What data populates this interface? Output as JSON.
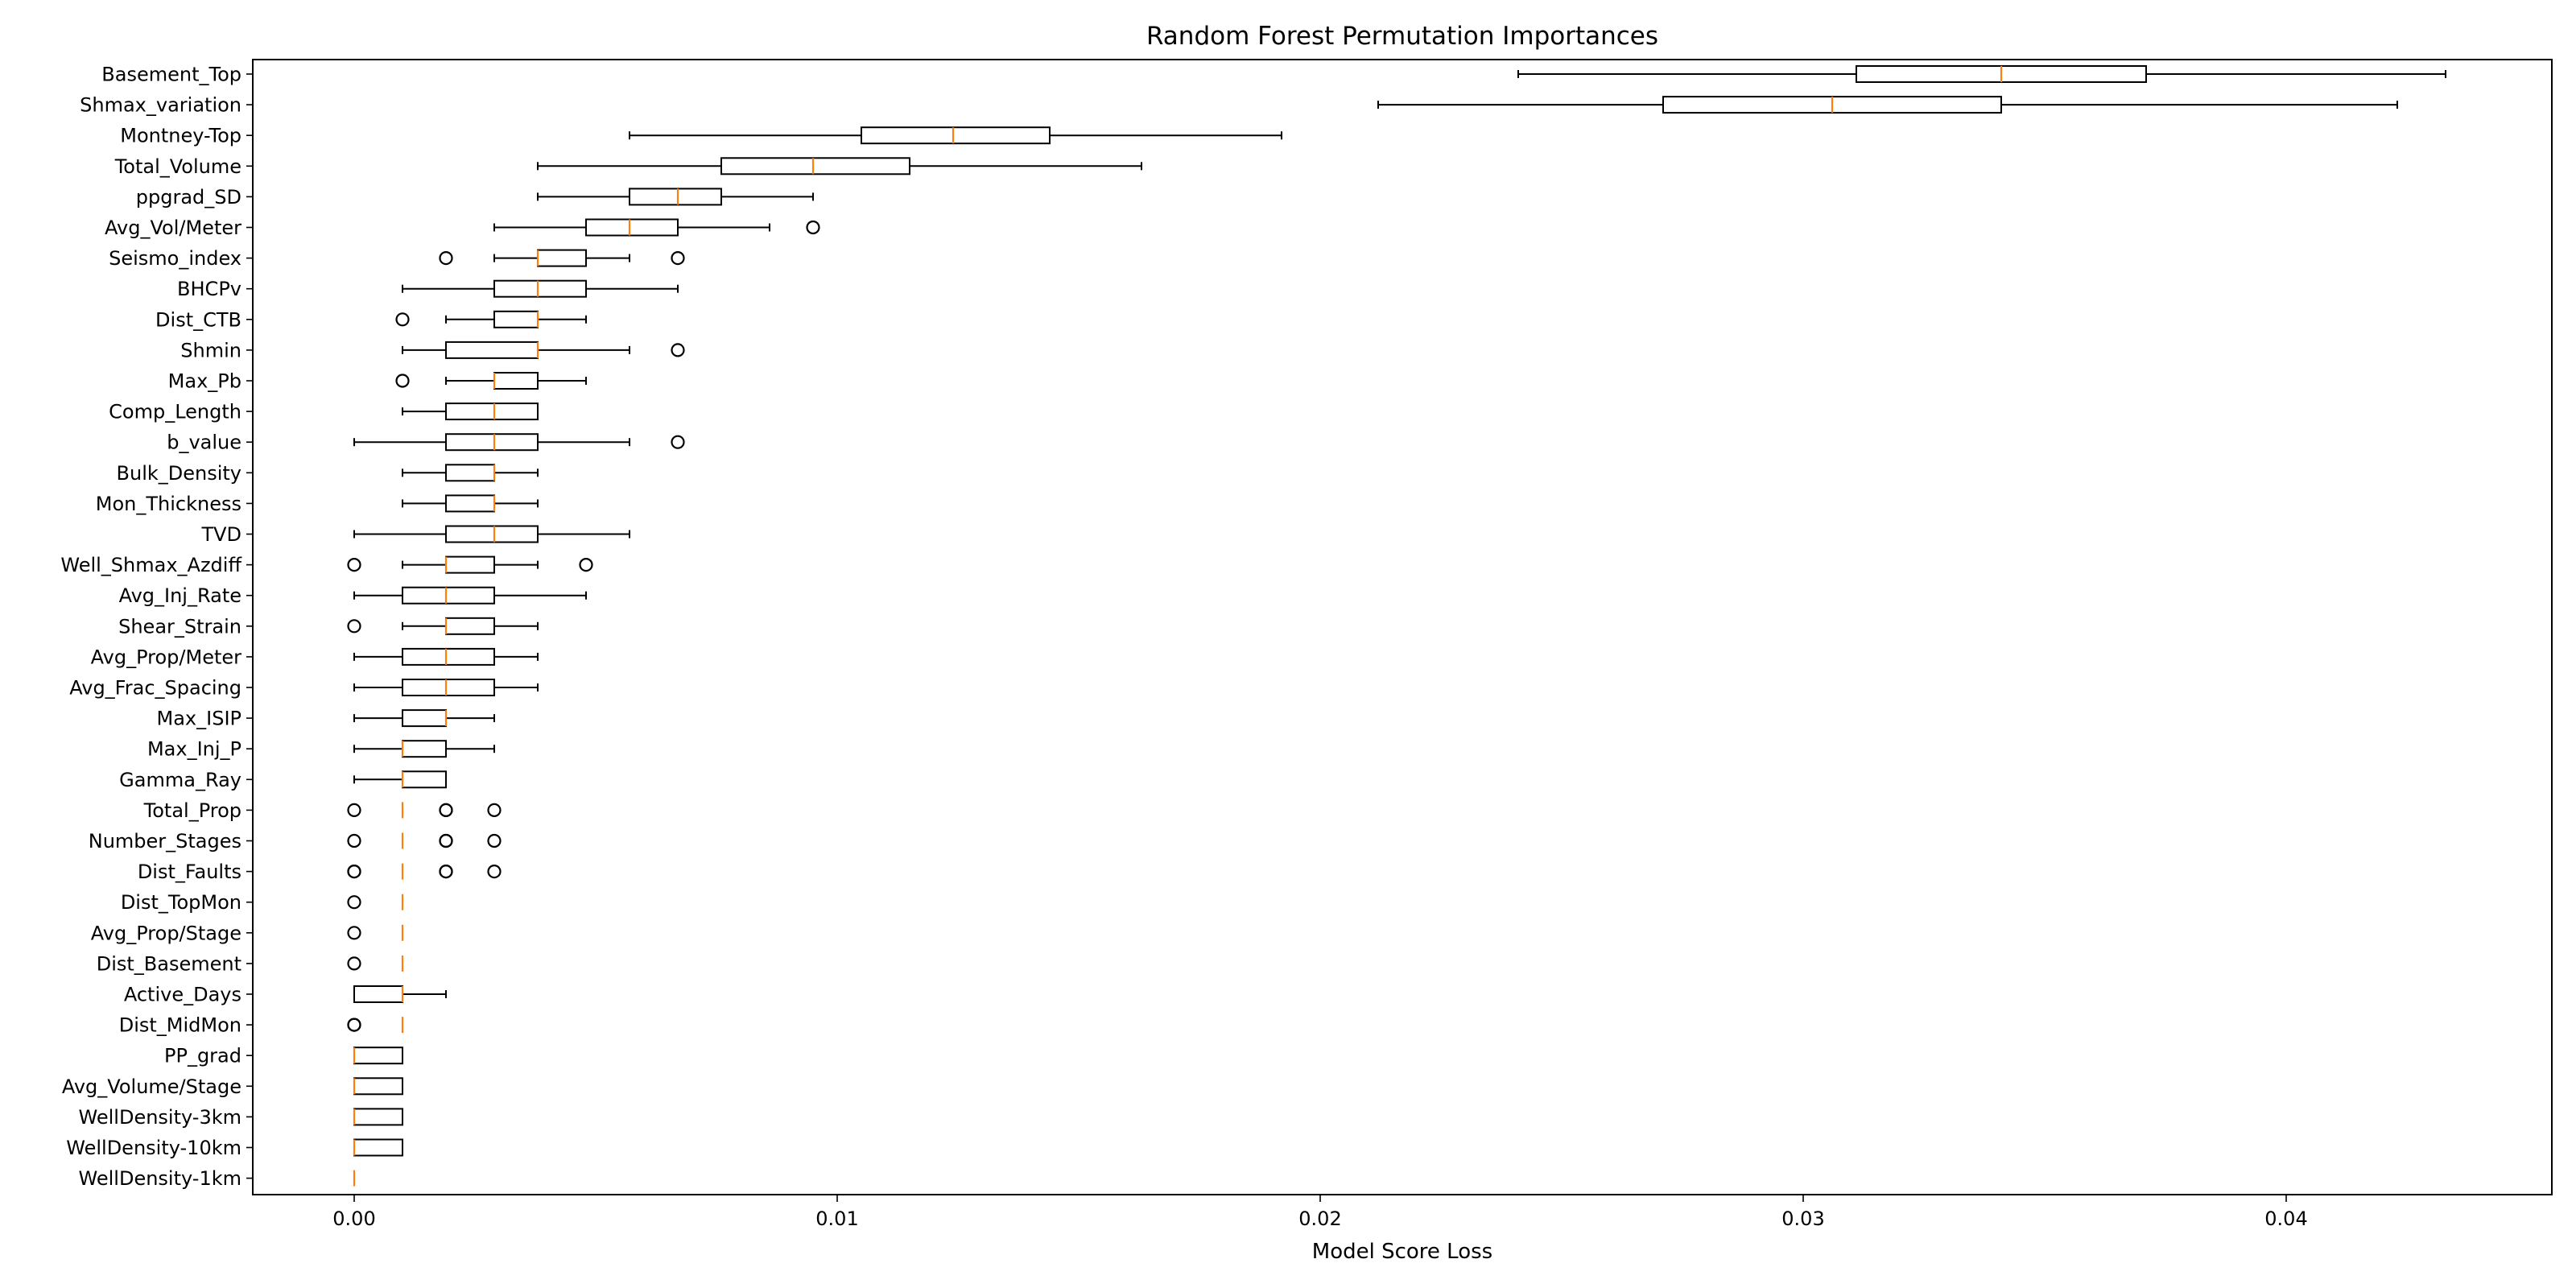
{
  "chart_data": {
    "type": "boxplot",
    "orientation": "horizontal",
    "title": "Random Forest Permutation Importances",
    "xlabel": "Model Score Loss",
    "ylabel": "",
    "xlim": [
      -0.0021,
      0.0455
    ],
    "xticks": [
      0.0,
      0.01,
      0.02,
      0.03,
      0.04
    ],
    "xtick_labels": [
      "0.00",
      "0.01",
      "0.02",
      "0.03",
      "0.04"
    ],
    "grid": false,
    "colors": {
      "box": "#000000",
      "median": "#ff7f0e",
      "background": "#ffffff"
    },
    "series": [
      {
        "label": "Basement_Top",
        "whisker_low": 0.0241,
        "q1": 0.0311,
        "median": 0.0341,
        "q3": 0.0371,
        "whisker_high": 0.0433,
        "outliers": []
      },
      {
        "label": "Shmax_variation",
        "whisker_low": 0.0212,
        "q1": 0.0271,
        "median": 0.0306,
        "q3": 0.0341,
        "whisker_high": 0.0423,
        "outliers": []
      },
      {
        "label": "Montney-Top",
        "whisker_low": 0.0057,
        "q1": 0.0105,
        "median": 0.0124,
        "q3": 0.0144,
        "whisker_high": 0.0192,
        "outliers": []
      },
      {
        "label": "Total_Volume",
        "whisker_low": 0.0038,
        "q1": 0.0076,
        "median": 0.0095,
        "q3": 0.0115,
        "whisker_high": 0.0163,
        "outliers": []
      },
      {
        "label": "ppgrad_SD",
        "whisker_low": 0.0038,
        "q1": 0.0057,
        "median": 0.0067,
        "q3": 0.0076,
        "whisker_high": 0.0095,
        "outliers": []
      },
      {
        "label": "Avg_Vol/Meter",
        "whisker_low": 0.0029,
        "q1": 0.0048,
        "median": 0.0057,
        "q3": 0.0067,
        "whisker_high": 0.0086,
        "outliers": [
          0.0095
        ]
      },
      {
        "label": "Seismo_index",
        "whisker_low": 0.0029,
        "q1": 0.0038,
        "median": 0.0038,
        "q3": 0.0048,
        "whisker_high": 0.0057,
        "outliers": [
          0.0019,
          0.0067
        ]
      },
      {
        "label": "BHCPv",
        "whisker_low": 0.001,
        "q1": 0.0029,
        "median": 0.0038,
        "q3": 0.0048,
        "whisker_high": 0.0067,
        "outliers": []
      },
      {
        "label": "Dist_CTB",
        "whisker_low": 0.0019,
        "q1": 0.0029,
        "median": 0.0038,
        "q3": 0.0038,
        "whisker_high": 0.0048,
        "outliers": [
          0.001
        ]
      },
      {
        "label": "Shmin",
        "whisker_low": 0.001,
        "q1": 0.0019,
        "median": 0.0038,
        "q3": 0.0038,
        "whisker_high": 0.0057,
        "outliers": [
          0.0067
        ]
      },
      {
        "label": "Max_Pb",
        "whisker_low": 0.0019,
        "q1": 0.0029,
        "median": 0.0029,
        "q3": 0.0038,
        "whisker_high": 0.0048,
        "outliers": [
          0.001
        ]
      },
      {
        "label": "Comp_Length",
        "whisker_low": 0.001,
        "q1": 0.0019,
        "median": 0.0029,
        "q3": 0.0038,
        "whisker_high": 0.0038,
        "outliers": []
      },
      {
        "label": "b_value",
        "whisker_low": 0.0,
        "q1": 0.0019,
        "median": 0.0029,
        "q3": 0.0038,
        "whisker_high": 0.0057,
        "outliers": [
          0.0067
        ]
      },
      {
        "label": "Bulk_Density",
        "whisker_low": 0.001,
        "q1": 0.0019,
        "median": 0.0029,
        "q3": 0.0029,
        "whisker_high": 0.0038,
        "outliers": []
      },
      {
        "label": "Mon_Thickness",
        "whisker_low": 0.001,
        "q1": 0.0019,
        "median": 0.0029,
        "q3": 0.0029,
        "whisker_high": 0.0038,
        "outliers": []
      },
      {
        "label": "TVD",
        "whisker_low": 0.0,
        "q1": 0.0019,
        "median": 0.0029,
        "q3": 0.0038,
        "whisker_high": 0.0057,
        "outliers": []
      },
      {
        "label": "Well_Shmax_Azdiff",
        "whisker_low": 0.001,
        "q1": 0.0019,
        "median": 0.0019,
        "q3": 0.0029,
        "whisker_high": 0.0038,
        "outliers": [
          0.0,
          0.0048
        ]
      },
      {
        "label": "Avg_Inj_Rate",
        "whisker_low": 0.0,
        "q1": 0.001,
        "median": 0.0019,
        "q3": 0.0029,
        "whisker_high": 0.0048,
        "outliers": []
      },
      {
        "label": "Shear_Strain",
        "whisker_low": 0.001,
        "q1": 0.0019,
        "median": 0.0019,
        "q3": 0.0029,
        "whisker_high": 0.0038,
        "outliers": [
          0.0
        ]
      },
      {
        "label": "Avg_Prop/Meter",
        "whisker_low": 0.0,
        "q1": 0.001,
        "median": 0.0019,
        "q3": 0.0029,
        "whisker_high": 0.0038,
        "outliers": []
      },
      {
        "label": "Avg_Frac_Spacing",
        "whisker_low": 0.0,
        "q1": 0.001,
        "median": 0.0019,
        "q3": 0.0029,
        "whisker_high": 0.0038,
        "outliers": []
      },
      {
        "label": "Max_ISIP",
        "whisker_low": 0.0,
        "q1": 0.001,
        "median": 0.0019,
        "q3": 0.0019,
        "whisker_high": 0.0029,
        "outliers": []
      },
      {
        "label": "Max_Inj_P",
        "whisker_low": 0.0,
        "q1": 0.001,
        "median": 0.001,
        "q3": 0.0019,
        "whisker_high": 0.0029,
        "outliers": []
      },
      {
        "label": "Gamma_Ray",
        "whisker_low": 0.0,
        "q1": 0.001,
        "median": 0.001,
        "q3": 0.0019,
        "whisker_high": 0.0019,
        "outliers": []
      },
      {
        "label": "Total_Prop",
        "whisker_low": 0.001,
        "q1": 0.001,
        "median": 0.001,
        "q3": 0.001,
        "whisker_high": 0.001,
        "outliers": [
          0.0,
          0.0019,
          0.0019,
          0.0029
        ]
      },
      {
        "label": "Number_Stages",
        "whisker_low": 0.001,
        "q1": 0.001,
        "median": 0.001,
        "q3": 0.001,
        "whisker_high": 0.001,
        "outliers": [
          0.0,
          0.0019,
          0.0019,
          0.0029
        ]
      },
      {
        "label": "Dist_Faults",
        "whisker_low": 0.001,
        "q1": 0.001,
        "median": 0.001,
        "q3": 0.001,
        "whisker_high": 0.001,
        "outliers": [
          0.0,
          0.0,
          0.0019,
          0.0019,
          0.0029
        ]
      },
      {
        "label": "Dist_TopMon",
        "whisker_low": 0.001,
        "q1": 0.001,
        "median": 0.001,
        "q3": 0.001,
        "whisker_high": 0.001,
        "outliers": [
          0.0
        ]
      },
      {
        "label": "Avg_Prop/Stage",
        "whisker_low": 0.001,
        "q1": 0.001,
        "median": 0.001,
        "q3": 0.001,
        "whisker_high": 0.001,
        "outliers": [
          0.0
        ]
      },
      {
        "label": "Dist_Basement",
        "whisker_low": 0.001,
        "q1": 0.001,
        "median": 0.001,
        "q3": 0.001,
        "whisker_high": 0.001,
        "outliers": [
          0.0
        ]
      },
      {
        "label": "Active_Days",
        "whisker_low": 0.0,
        "q1": 0.0,
        "median": 0.001,
        "q3": 0.001,
        "whisker_high": 0.0019,
        "outliers": []
      },
      {
        "label": "Dist_MidMon",
        "whisker_low": 0.001,
        "q1": 0.001,
        "median": 0.001,
        "q3": 0.001,
        "whisker_high": 0.001,
        "outliers": [
          0.0,
          0.0
        ]
      },
      {
        "label": "PP_grad",
        "whisker_low": 0.0,
        "q1": 0.0,
        "median": 0.0,
        "q3": 0.001,
        "whisker_high": 0.001,
        "outliers": []
      },
      {
        "label": "Avg_Volume/Stage",
        "whisker_low": 0.0,
        "q1": 0.0,
        "median": 0.0,
        "q3": 0.001,
        "whisker_high": 0.001,
        "outliers": []
      },
      {
        "label": "WellDensity-3km",
        "whisker_low": 0.0,
        "q1": 0.0,
        "median": 0.0,
        "q3": 0.001,
        "whisker_high": 0.001,
        "outliers": []
      },
      {
        "label": "WellDensity-10km",
        "whisker_low": 0.0,
        "q1": 0.0,
        "median": 0.0,
        "q3": 0.001,
        "whisker_high": 0.001,
        "outliers": []
      },
      {
        "label": "WellDensity-1km",
        "whisker_low": 0.0,
        "q1": 0.0,
        "median": 0.0,
        "q3": 0.0,
        "whisker_high": 0.0,
        "outliers": []
      }
    ]
  }
}
